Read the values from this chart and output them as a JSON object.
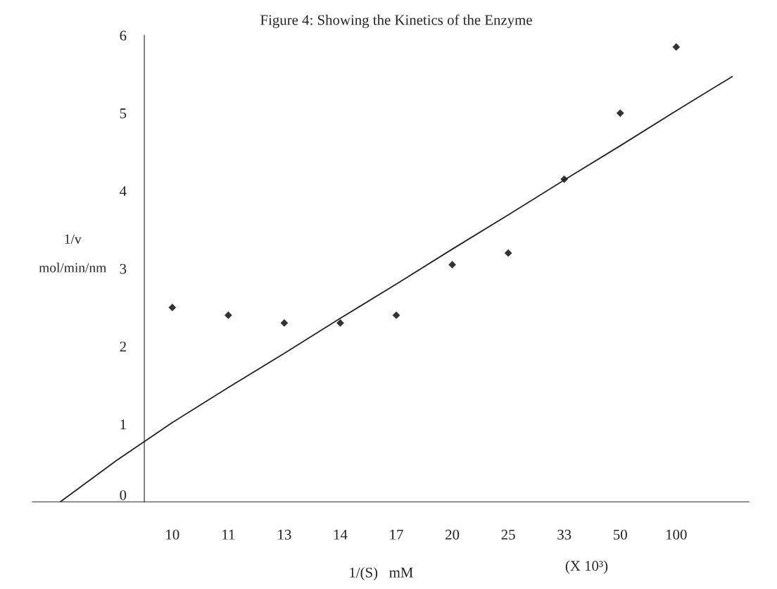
{
  "chart_data": {
    "type": "scatter",
    "title": "Figure 4: Showing the Kinetics of the Enzyme",
    "xlabel": "1/(S)   mM",
    "ylabel": "1/v\n\nmol/min/nm",
    "annotations": [
      "(X 10³)"
    ],
    "categories": [
      null,
      null,
      "10",
      "11",
      "13",
      "14",
      "17",
      "20",
      "25",
      "33",
      "50",
      "100",
      null
    ],
    "ylim": [
      0,
      6
    ],
    "yticks": [
      0,
      1,
      2,
      3,
      4,
      5,
      6
    ],
    "series": [
      {
        "type": "scatter",
        "color": "#333333",
        "marker": "diamond",
        "values": [
          null,
          null,
          2.5,
          2.4,
          2.3,
          2.3,
          2.4,
          3.05,
          3.2,
          4.15,
          5.0,
          5.85,
          null
        ]
      },
      {
        "type": "line",
        "color": "#222222",
        "values": [
          0.0,
          0.53,
          1.02,
          1.47,
          1.91,
          2.36,
          2.8,
          3.25,
          3.69,
          4.14,
          4.58,
          5.03,
          5.47
        ]
      }
    ],
    "grid": false,
    "legend": false
  }
}
